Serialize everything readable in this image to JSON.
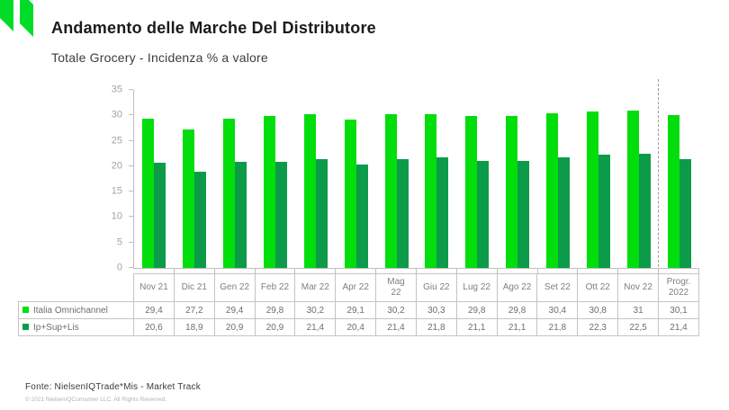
{
  "header": {
    "title": "Andamento delle Marche Del Distributore",
    "subtitle": "Totale Grocery - Incidenza % a valore"
  },
  "colors": {
    "logo": "#00DC28",
    "series1": "#01DE0C",
    "series2": "#0C9B48",
    "axis_line": "#bfbfbf",
    "axis_text": "#a3a3a3",
    "table_border": "#c4c4c4",
    "table_text": "#6e6e6e"
  },
  "chart_data": {
    "type": "bar",
    "title": "Andamento delle Marche Del Distributore",
    "subtitle": "Totale Grocery - Incidenza % a valore",
    "categories": [
      "Nov 21",
      "Dic 21",
      "Gen 22",
      "Feb 22",
      "Mar 22",
      "Apr 22",
      "Mag 22",
      "Giu 22",
      "Lug 22",
      "Ago 22",
      "Set 22",
      "Ott 22",
      "Nov 22",
      "Progr. 2022"
    ],
    "categories_display": [
      "Nov 21",
      "Dic 21",
      "Gen 22",
      "Feb 22",
      "Mar 22",
      "Apr 22",
      "Mag\n22",
      "Giu 22",
      "Lug 22",
      "Ago 22",
      "Set 22",
      "Ott 22",
      "Nov 22",
      "Progr.\n2022"
    ],
    "series": [
      {
        "name": "Italia Omnichannel",
        "color": "#01DE0C",
        "values": [
          29.4,
          27.2,
          29.4,
          29.8,
          30.2,
          29.1,
          30.2,
          30.3,
          29.8,
          29.8,
          30.4,
          30.8,
          31,
          30.1
        ],
        "labels": [
          "29,4",
          "27,2",
          "29,4",
          "29,8",
          "30,2",
          "29,1",
          "30,2",
          "30,3",
          "29,8",
          "29,8",
          "30,4",
          "30,8",
          "31",
          "30,1"
        ]
      },
      {
        "name": "Ip+Sup+Lis",
        "color": "#0C9B48",
        "values": [
          20.6,
          18.9,
          20.9,
          20.9,
          21.4,
          20.4,
          21.4,
          21.8,
          21.1,
          21.1,
          21.8,
          22.3,
          22.5,
          21.4
        ],
        "labels": [
          "20,6",
          "18,9",
          "20,9",
          "20,9",
          "21,4",
          "20,4",
          "21,4",
          "21,8",
          "21,1",
          "21,1",
          "21,8",
          "22,3",
          "22,5",
          "21,4"
        ]
      }
    ],
    "xlabel": "",
    "ylabel": "",
    "ylim": [
      0,
      35
    ],
    "yticks": [
      0,
      5,
      10,
      15,
      20,
      25,
      30,
      35
    ],
    "grid": false,
    "legend_position": "data-table-left",
    "data_labels": false,
    "separator_before_category": "Progr. 2022"
  },
  "footer": {
    "source": "Fonte: NielsenIQTrade*Mis - Market Track",
    "copyright": "© 2021 NielsenIQConsumer LLC. All Rights Reserved."
  }
}
